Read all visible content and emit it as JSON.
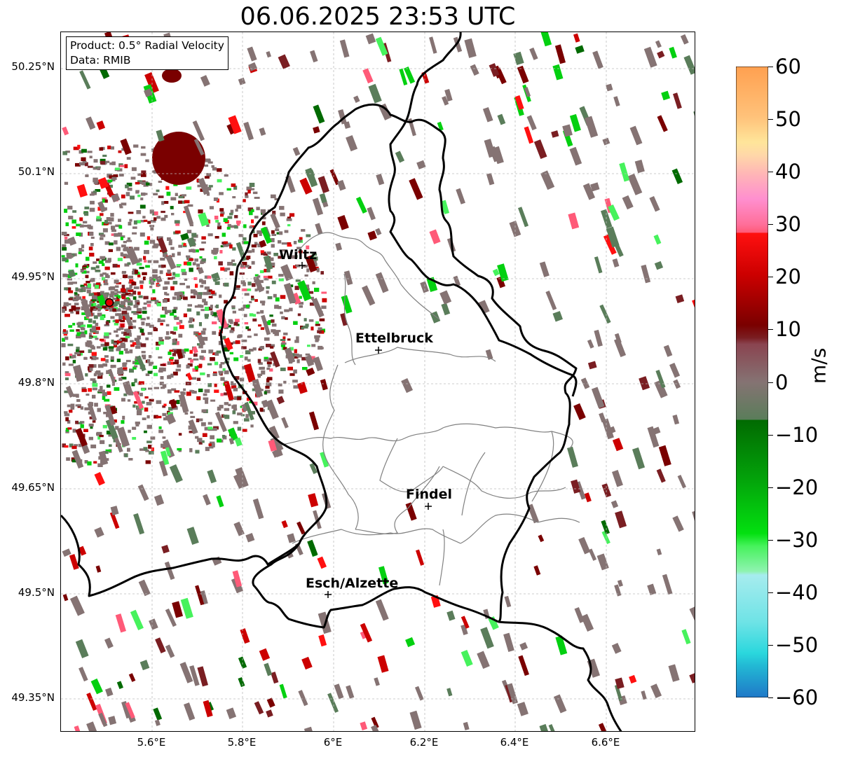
{
  "title": "06.06.2025 23:53 UTC",
  "info": {
    "product": "Product: 0.5° Radial Velocity",
    "data_source": "Data: RMIB"
  },
  "lat_labels": [
    "50.25°N",
    "50.1°N",
    "49.95°N",
    "49.8°N",
    "49.65°N",
    "49.5°N",
    "49.35°N"
  ],
  "lon_labels": [
    "5.6°E",
    "5.8°E",
    "6°E",
    "6.2°E",
    "6.4°E",
    "6.6°E"
  ],
  "cities": [
    "Wiltz",
    "Ettelbruck",
    "Findel",
    "Esch/Alzette"
  ],
  "colorbar": {
    "tick_labels": [
      "60",
      "50",
      "40",
      "30",
      "20",
      "10",
      "0",
      "−10",
      "−20",
      "−30",
      "−40",
      "−50",
      "−60"
    ],
    "unit": "m/s",
    "min": -60,
    "max": 60,
    "colors": {
      "-60": "#1f78c8",
      "-50": "#2ad7dd",
      "-40": "#a6ecee",
      "-35": "#8ff3b0",
      "-30": "#46f25c",
      "-20": "#03d010",
      "-10": "#016a01",
      "-7": "#5a7d5a",
      "0": "#857373",
      "7": "#7a1e22",
      "10": "#7a0000",
      "20": "#cc0000",
      "28": "#ff1010",
      "32": "#ff5a78",
      "40": "#ff8fcf",
      "46": "#ffd8a8",
      "50": "#ffc27a",
      "60": "#ffa050"
    }
  },
  "colors": {
    "border_line": "#000000",
    "district_line": "#808080",
    "grid": "#bdbdbd",
    "radar_site": "#e00000"
  }
}
